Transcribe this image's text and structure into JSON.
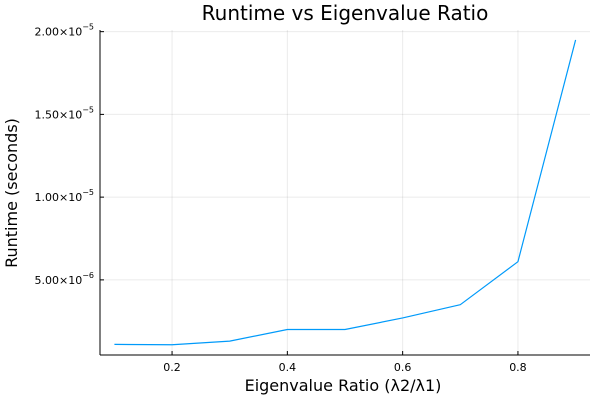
{
  "chart_data": {
    "type": "line",
    "title": "Runtime vs Eigenvalue Ratio",
    "xlabel": "Eigenvalue Ratio (λ2/λ1)",
    "ylabel": "Runtime (seconds)",
    "xlim": [
      0.075,
      0.925
    ],
    "ylim": [
      4.6e-07,
      2.01e-05
    ],
    "x_ticks": [
      {
        "value": 0.2,
        "label": "0.2"
      },
      {
        "value": 0.4,
        "label": "0.4"
      },
      {
        "value": 0.6,
        "label": "0.6"
      },
      {
        "value": 0.8,
        "label": "0.8"
      }
    ],
    "y_ticks": [
      {
        "value": 5e-06,
        "mantissa": "5.00×10",
        "exp": "−6"
      },
      {
        "value": 1e-05,
        "mantissa": "1.00×10",
        "exp": "−5"
      },
      {
        "value": 1.5e-05,
        "mantissa": "1.50×10",
        "exp": "−5"
      },
      {
        "value": 2e-05,
        "mantissa": "2.00×10",
        "exp": "−5"
      }
    ],
    "grid": true,
    "legend": false,
    "series": [
      {
        "color": "#009AFA",
        "x": [
          0.1,
          0.2,
          0.3,
          0.4,
          0.5,
          0.6,
          0.7,
          0.8,
          0.9
        ],
        "y": [
          1.1e-06,
          1.08e-06,
          1.3e-06,
          2e-06,
          2e-06,
          2.7e-06,
          3.5e-06,
          6.1e-06,
          1.95e-05
        ]
      }
    ]
  }
}
